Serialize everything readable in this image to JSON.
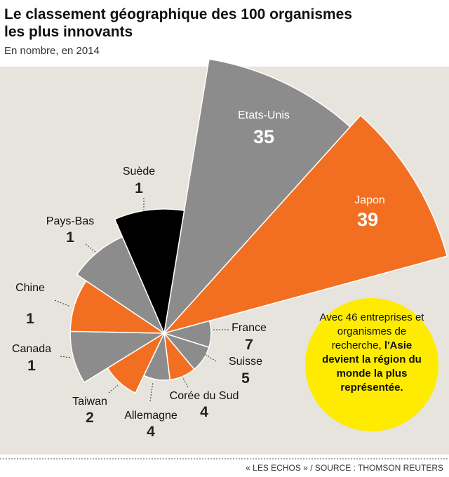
{
  "chart_data": {
    "type": "polar_area",
    "title": "Le classement géographique des 100 organismes les plus innovants",
    "subtitle": "En nombre, en 2014",
    "categories": [
      "Etats-Unis",
      "Japon",
      "Suède",
      "Pays-Bas",
      "Chine",
      "Canada",
      "Taiwan",
      "Allemagne",
      "Corée du Sud",
      "Suisse",
      "France"
    ],
    "values": [
      35,
      39,
      1,
      1,
      1,
      1,
      2,
      4,
      4,
      5,
      7
    ],
    "colors": [
      "#8c8c8c",
      "#f26f21",
      "#8c8c8c",
      "#8c8c8c",
      "#f26f21",
      "#8c8c8c",
      "#f26f21",
      "#8c8c8c",
      "#f26f21",
      "#8c8c8c",
      "#000000"
    ],
    "annotation": {
      "text": "Avec 46 entreprises et organismes de recherche,",
      "bold": "l'Asie devient la région du monde la plus représentée."
    },
    "source": "« LES ECHOS » / SOURCE : THOMSON REUTERS"
  }
}
